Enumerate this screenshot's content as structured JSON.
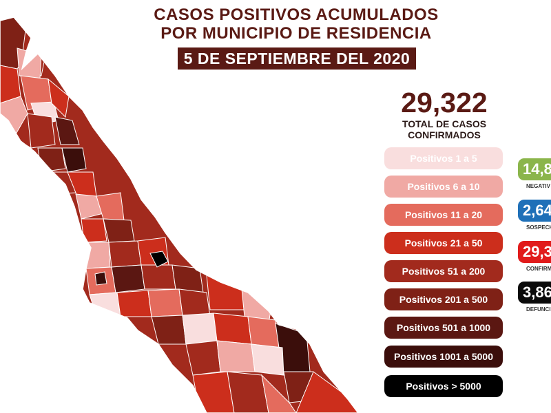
{
  "title": {
    "line1": "CASOS POSITIVOS ACUMULADOS",
    "line2": "POR MUNICIPIO DE RESIDENCIA",
    "date": "5 DE SEPTIEMBRE DEL 2020"
  },
  "summary": {
    "total": "29,322",
    "label_line1": "TOTAL DE CASOS",
    "label_line2": "CONFIRMADOS"
  },
  "legend": [
    {
      "label": "Positivos 1 a 5",
      "color": "#f9dede",
      "text_color": "#ffffff"
    },
    {
      "label": "Positivos 6 a 10",
      "color": "#f0a9a4",
      "text_color": "#ffffff"
    },
    {
      "label": "Positivos 11 a 20",
      "color": "#e46b5d",
      "text_color": "#ffffff"
    },
    {
      "label": "Positivos 21 a 50",
      "color": "#cc2e1c",
      "text_color": "#ffffff"
    },
    {
      "label": "Positivos 51 a 200",
      "color": "#a22a1d",
      "text_color": "#ffffff"
    },
    {
      "label": "Positivos 201 a 500",
      "color": "#7f2116",
      "text_color": "#ffffff"
    },
    {
      "label": "Positivos 501 a 1000",
      "color": "#5b1712",
      "text_color": "#ffffff"
    },
    {
      "label": "Positivos 1001 a 5000",
      "color": "#3b0e0b",
      "text_color": "#ffffff"
    },
    {
      "label": "Positivos > 5000",
      "color": "#000000",
      "text_color": "#ffffff"
    }
  ],
  "stats": [
    {
      "value": "14,8",
      "label": "NEGATIV",
      "color": "#8bb54b"
    },
    {
      "value": "2,64",
      "label": "SOSPECH",
      "color": "#1f70b8"
    },
    {
      "value": "29,3",
      "label": "CONFIRM",
      "color": "#e11b1b"
    },
    {
      "value": "3,86",
      "label": "DEFUNCI",
      "color": "#0a0a0a"
    }
  ]
}
